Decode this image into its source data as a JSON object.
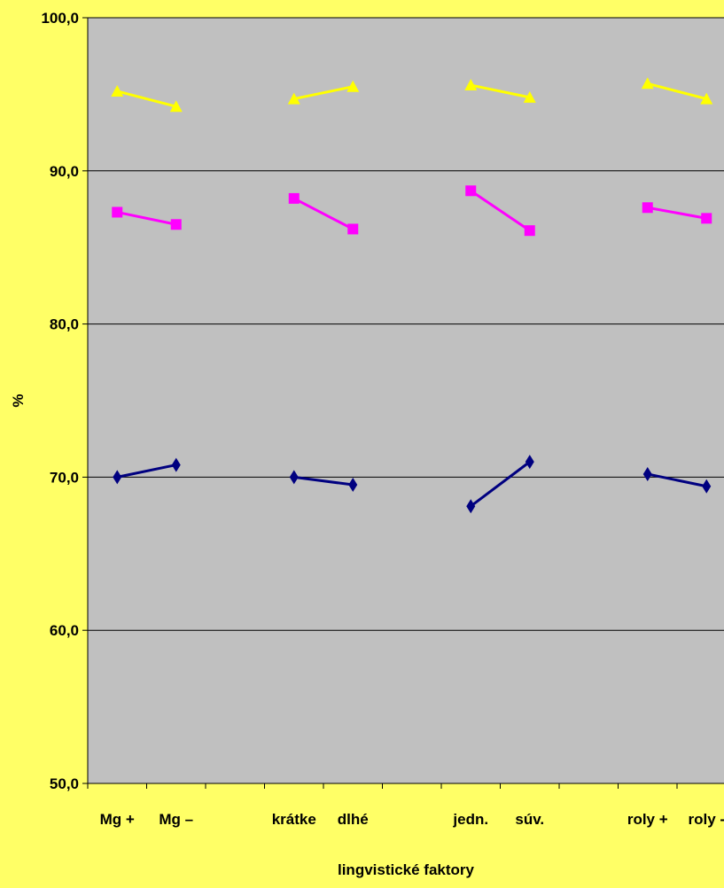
{
  "chart_data": {
    "type": "line",
    "title": "",
    "xlabel": "lingvistické faktory",
    "ylabel": "%",
    "ylim": [
      50,
      100
    ],
    "yticks": [
      "50,0",
      "60,0",
      "70,0",
      "80,0",
      "90,0",
      "100,0"
    ],
    "grid": true,
    "categories": [
      "Mg +",
      "Mg –",
      "",
      "krátke",
      "dlhé",
      "",
      "jedn.",
      "súv.",
      "",
      "roly +",
      "roly -"
    ],
    "series": [
      {
        "color": "#FFFF00",
        "marker": "triangle",
        "values": [
          95.2,
          94.2,
          null,
          94.7,
          95.5,
          null,
          95.6,
          94.8,
          null,
          95.7,
          94.7
        ]
      },
      {
        "color": "#FF00FF",
        "marker": "square",
        "values": [
          87.3,
          86.5,
          null,
          88.2,
          86.2,
          null,
          88.7,
          86.1,
          null,
          87.6,
          86.9
        ]
      },
      {
        "color": "#000080",
        "marker": "diamond",
        "values": [
          70.0,
          70.8,
          null,
          70.0,
          69.5,
          null,
          68.1,
          71.0,
          null,
          70.2,
          69.4
        ]
      }
    ]
  }
}
